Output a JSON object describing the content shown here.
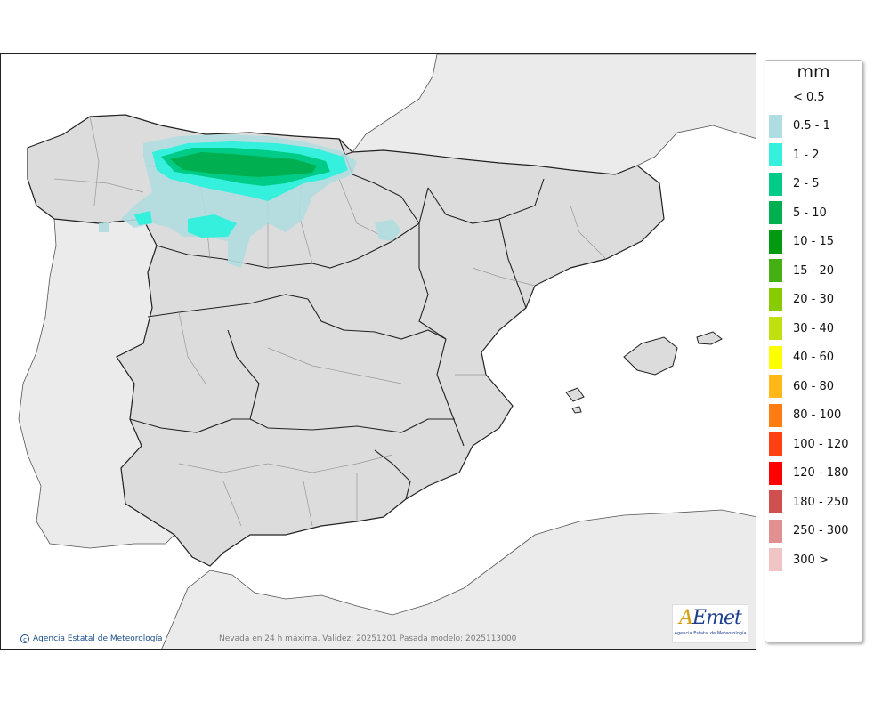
{
  "map": {
    "description_labels": {
      "credit": "Agencia Estatal de Meteorología",
      "footer_note": "Nevada en 24 h máxima. Validez: 20251201 Pasada modelo: 2025113000"
    },
    "logo": {
      "text_mark": "AEmet",
      "subtitle": "Agencia Estatal de Meteorología"
    },
    "colors": {
      "sea": "#ffffff",
      "land_foreign": "#ebebeb",
      "land_spain": "#dcdcdc",
      "borders": "#222222"
    }
  },
  "legend": {
    "unit": "mm",
    "items": [
      {
        "label": "< 0.5",
        "color": ""
      },
      {
        "label": "0.5 - 1",
        "color": "#b0dde0"
      },
      {
        "label": "1 - 2",
        "color": "#34f0dc"
      },
      {
        "label": "2 - 5",
        "color": "#00cc88"
      },
      {
        "label": "5 - 10",
        "color": "#00b050"
      },
      {
        "label": "10 - 15",
        "color": "#009a10"
      },
      {
        "label": "15 - 20",
        "color": "#44b014"
      },
      {
        "label": "20 - 30",
        "color": "#88cc00"
      },
      {
        "label": "30 - 40",
        "color": "#c0e010"
      },
      {
        "label": "40 - 60",
        "color": "#ffff00"
      },
      {
        "label": "60 - 80",
        "color": "#ffb818"
      },
      {
        "label": "80 - 100",
        "color": "#ff7c10"
      },
      {
        "label": "100 - 120",
        "color": "#ff4010"
      },
      {
        "label": "120 - 180",
        "color": "#ff0000"
      },
      {
        "label": "180 - 250",
        "color": "#d05050"
      },
      {
        "label": "250 - 300",
        "color": "#e09090"
      },
      {
        "label": "300 >",
        "color": "#f0c4c4"
      }
    ]
  }
}
